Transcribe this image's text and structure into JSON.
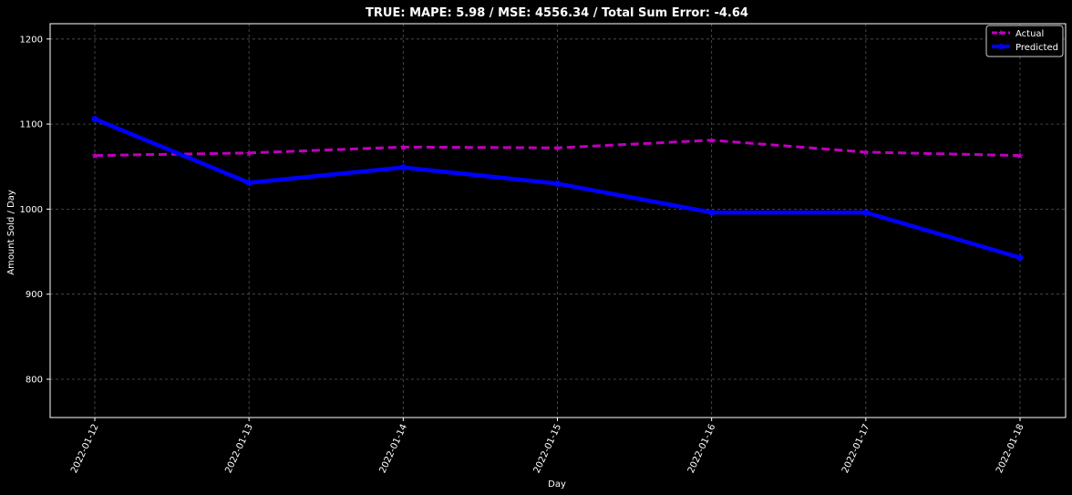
{
  "chart_data": {
    "type": "line",
    "title": "TRUE: MAPE: 5.98 / MSE: 4556.34 / Total Sum Error: -4.64",
    "xlabel": "Day",
    "ylabel": "Amount Sold / Day",
    "categories": [
      "2022-01-12",
      "2022-01-13",
      "2022-01-14",
      "2022-01-15",
      "2022-01-16",
      "2022-01-17",
      "2022-01-18"
    ],
    "yticks": [
      800,
      900,
      1000,
      1100,
      1200
    ],
    "ylim": [
      755,
      1218
    ],
    "grid": true,
    "legend_position": "top-right",
    "series": [
      {
        "name": "Actual",
        "values": [
          1063,
          1066,
          1073,
          1072,
          1081,
          1067,
          1063
        ],
        "color": "#bf00bf",
        "line_style": "dashed",
        "marker": "star"
      },
      {
        "name": "Predicted",
        "values": [
          1106,
          1031,
          1049,
          1030,
          996,
          996,
          943
        ],
        "color": "#0000ff",
        "line_style": "solid",
        "marker": "circle"
      }
    ]
  },
  "colors": {
    "background": "#000000",
    "axes": "#ffffff",
    "text": "#ffffff",
    "grid": "#555555"
  }
}
